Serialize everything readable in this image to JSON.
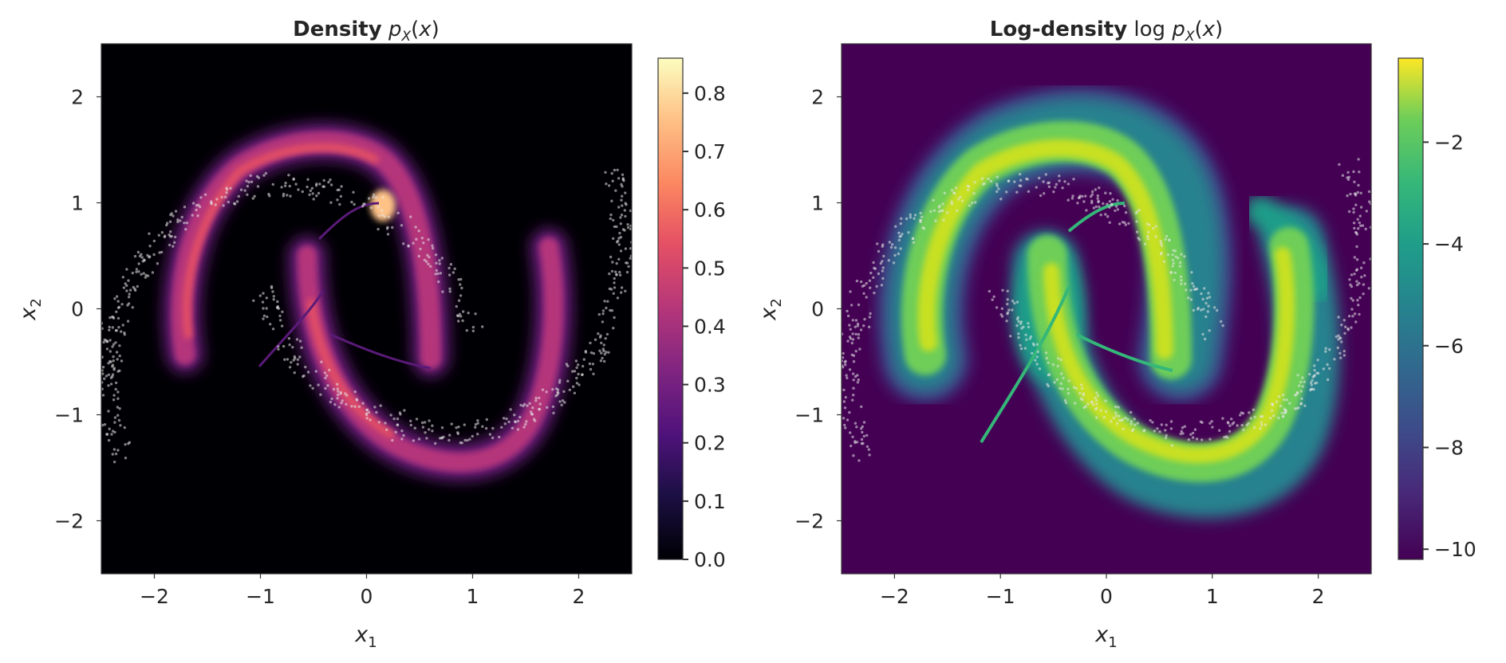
{
  "chart_data": [
    {
      "type": "heatmap",
      "title_bold": "Density",
      "title_math": "p_X(x)",
      "xlabel": "x1",
      "ylabel": "x2",
      "xlim": [
        -2.5,
        2.5
      ],
      "ylim": [
        -2.5,
        2.5
      ],
      "xticks": [
        -2,
        -1,
        0,
        1,
        2
      ],
      "yticks": [
        -2,
        -1,
        0,
        1,
        2
      ],
      "grid": false,
      "colormap": "magma",
      "colorbar": {
        "min": 0.0,
        "max": 0.86,
        "ticks": [
          0.0,
          0.1,
          0.2,
          0.3,
          0.4,
          0.5,
          0.6,
          0.7,
          0.8
        ],
        "tick_labels": [
          "0.0",
          "0.1",
          "0.2",
          "0.3",
          "0.4",
          "0.5",
          "0.6",
          "0.7",
          "0.8"
        ]
      },
      "background_color": "#000004",
      "sample_color": "#e6e6e6",
      "peak_value": 0.86
    },
    {
      "type": "heatmap",
      "title_bold": "Log-density",
      "title_math": "log p_X(x)",
      "xlabel": "x1",
      "ylabel": "x2",
      "xlim": [
        -2.5,
        2.5
      ],
      "ylim": [
        -2.5,
        2.5
      ],
      "xticks": [
        -2,
        -1,
        0,
        1,
        2
      ],
      "yticks": [
        -2,
        -1,
        0,
        1,
        2
      ],
      "grid": false,
      "colormap": "viridis",
      "colorbar": {
        "min": -10.2,
        "max": -0.35,
        "ticks": [
          -10,
          -8,
          -6,
          -4,
          -2
        ],
        "tick_labels": [
          "−10",
          "−8",
          "−6",
          "−4",
          "−2"
        ]
      },
      "background_color": "#440154",
      "sample_color": "#e6e6e6",
      "floor_value": -10.2
    }
  ]
}
